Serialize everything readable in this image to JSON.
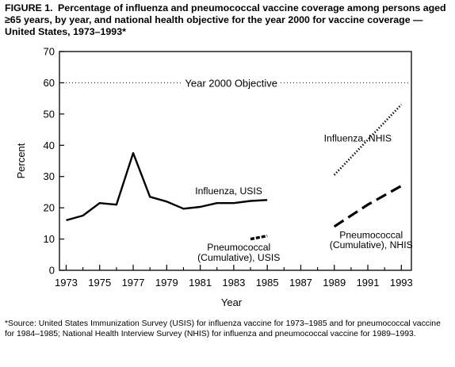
{
  "figure": {
    "label": "FIGURE 1.",
    "title": "Percentage of influenza and pneumococcal vaccine coverage among persons aged ≥65 years, by year, and national health objective for the year 2000 for vaccine coverage — United States, 1973–1993*",
    "footnote": "*Source: United States Immunization Survey (USIS) for influenza vaccine for 1973–1985 and for pneumococcal vaccine for 1984–1985; National Health Interview Survey (NHIS) for influenza and pneumococcal vaccine for 1989–1993."
  },
  "chart_data": {
    "type": "line",
    "xlabel": "Year",
    "ylabel": "Percent",
    "xlim": [
      1972.6,
      1993.6
    ],
    "ylim": [
      0,
      70
    ],
    "xticks_labeled": [
      1973,
      1975,
      1977,
      1979,
      1981,
      1983,
      1985,
      1987,
      1989,
      1991,
      1993
    ],
    "xticks_minor": [
      1974,
      1976,
      1978,
      1980,
      1982,
      1984,
      1986,
      1988,
      1990,
      1992
    ],
    "yticks": [
      0,
      10,
      20,
      30,
      40,
      50,
      60,
      70
    ],
    "grid": false,
    "color": "#000000",
    "reference_line": {
      "y": 60,
      "label": "Year 2000 Objective",
      "style": "dotted"
    },
    "series": [
      {
        "name": "Influenza, USIS",
        "style": "solid",
        "x": [
          1973,
          1974,
          1975,
          1976,
          1977,
          1978,
          1979,
          1980,
          1981,
          1982,
          1983,
          1984,
          1985
        ],
        "y": [
          16,
          17.5,
          21.5,
          21,
          37.5,
          23.5,
          22,
          19.7,
          20.3,
          21.5,
          21.5,
          22.2,
          22.5
        ]
      },
      {
        "name": "Pneumococcal (Cumulative), USIS",
        "style": "heavy-dash",
        "x": [
          1984,
          1985
        ],
        "y": [
          10,
          11
        ]
      },
      {
        "name": "Influenza, NHIS",
        "style": "dotted",
        "x": [
          1989,
          1993
        ],
        "y": [
          30.5,
          53
        ]
      },
      {
        "name": "Pneumococcal (Cumulative), NHIS",
        "style": "dashed",
        "x": [
          1989,
          1991,
          1993
        ],
        "y": [
          14,
          21,
          27
        ]
      }
    ],
    "annotations": [
      {
        "text": "Influenza, USIS",
        "series": 0
      },
      {
        "text": "Pneumococcal",
        "series": 1
      },
      {
        "text": "(Cumulative), USIS",
        "series": 1
      },
      {
        "text": "Influenza, NHIS",
        "series": 2
      },
      {
        "text": "Pneumococcal",
        "series": 3
      },
      {
        "text": "(Cumulative), NHIS",
        "series": 3
      }
    ]
  }
}
